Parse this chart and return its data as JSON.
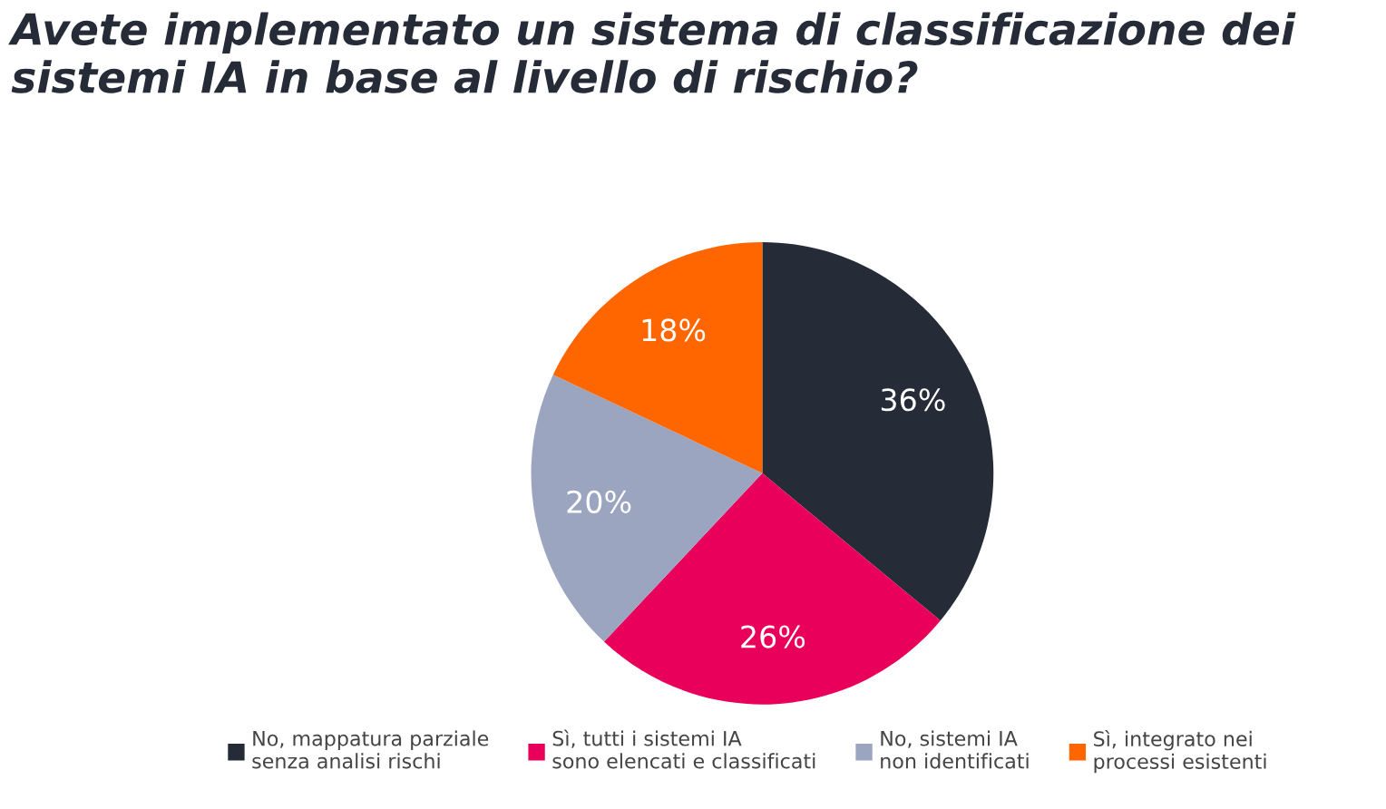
{
  "chart_data": {
    "type": "pie",
    "title": "Avete implementato un sistema di classificazione dei\nsistemi IA in base al livello di rischio?",
    "categories": [
      "No, mappatura parziale\nsenza analisi rischi",
      "Sì, tutti i sistemi IA\nsono elencati e classificati",
      "No, sistemi IA\nnon identificati",
      "Sì, integrato nei\nprocessi esistenti"
    ],
    "values": [
      36,
      26,
      20,
      18
    ],
    "colors": [
      "#262b38",
      "#e8005a",
      "#9ba5c0",
      "#ff6600"
    ],
    "value_labels": [
      "36%",
      "26%",
      "20%",
      "18%"
    ],
    "legend": "bottom"
  }
}
